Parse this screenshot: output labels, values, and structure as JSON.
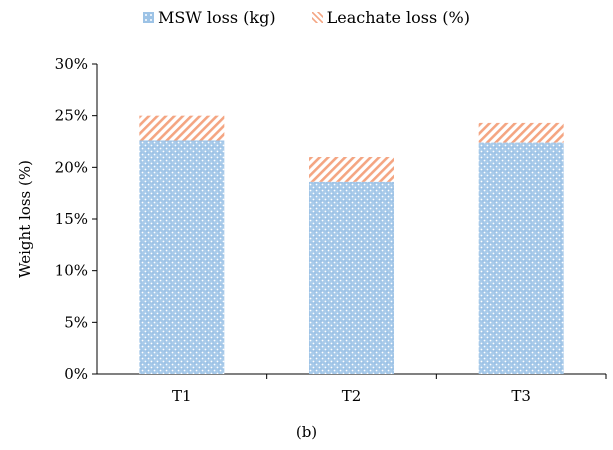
{
  "chart_data": {
    "type": "bar",
    "stacked": true,
    "categories": [
      "T1",
      "T2",
      "T3"
    ],
    "series": [
      {
        "name": "MSW loss (kg)",
        "values": [
          22.6,
          18.6,
          22.4
        ],
        "color": "#9dc3e6",
        "pattern": "dotted-grid"
      },
      {
        "name": "Leachate loss (%)",
        "values": [
          2.4,
          2.4,
          1.9
        ],
        "color": "#f4a582",
        "pattern": "diagonal-hatch"
      }
    ],
    "ylabel": "Weight loss (%)",
    "xlabel": "",
    "ylim": [
      0,
      30
    ],
    "yticks": [
      "0%",
      "5%",
      "10%",
      "15%",
      "20%",
      "25%",
      "30%"
    ],
    "grid": false,
    "legend_position": "top-center"
  },
  "caption": "(b)"
}
